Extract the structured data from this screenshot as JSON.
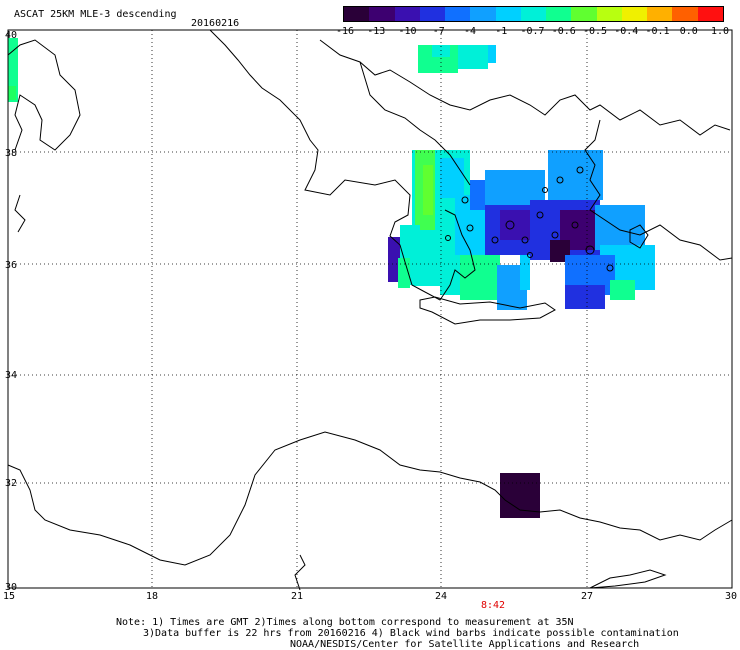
{
  "header": {
    "title": "ASCAT 25KM MLE-3 descending",
    "date": "20160216"
  },
  "colorbar": {
    "colors": [
      "#2a0038",
      "#3d0070",
      "#3a10b0",
      "#2030e0",
      "#1070ff",
      "#10a0ff",
      "#00d0ff",
      "#00f0d8",
      "#10ff90",
      "#60ff30",
      "#b8ff10",
      "#f0f000",
      "#ffb000",
      "#ff6000",
      "#ff1010"
    ],
    "labels": [
      "-16",
      "-13",
      "-10",
      "-7",
      "-4",
      "-1",
      "-0.7",
      "-0.6",
      "-0.5",
      "-0.4",
      "-0.1",
      "0.0",
      "1.0"
    ]
  },
  "axes": {
    "lat_labels": [
      "40",
      "38",
      "36",
      "34",
      "32",
      "30"
    ],
    "lon_labels": [
      "15",
      "18",
      "21",
      "24",
      "27",
      "30"
    ]
  },
  "time_label": "8:42",
  "notes": {
    "line1": "Note: 1) Times are GMT 2)Times along bottom correspond to measurement at 35N",
    "line2": "3)Data buffer is 22 hrs from 20160216 4) Black wind barbs indicate possible contamination",
    "line3": "NOAA/NESDIS/Center for Satellite Applications and Research"
  }
}
